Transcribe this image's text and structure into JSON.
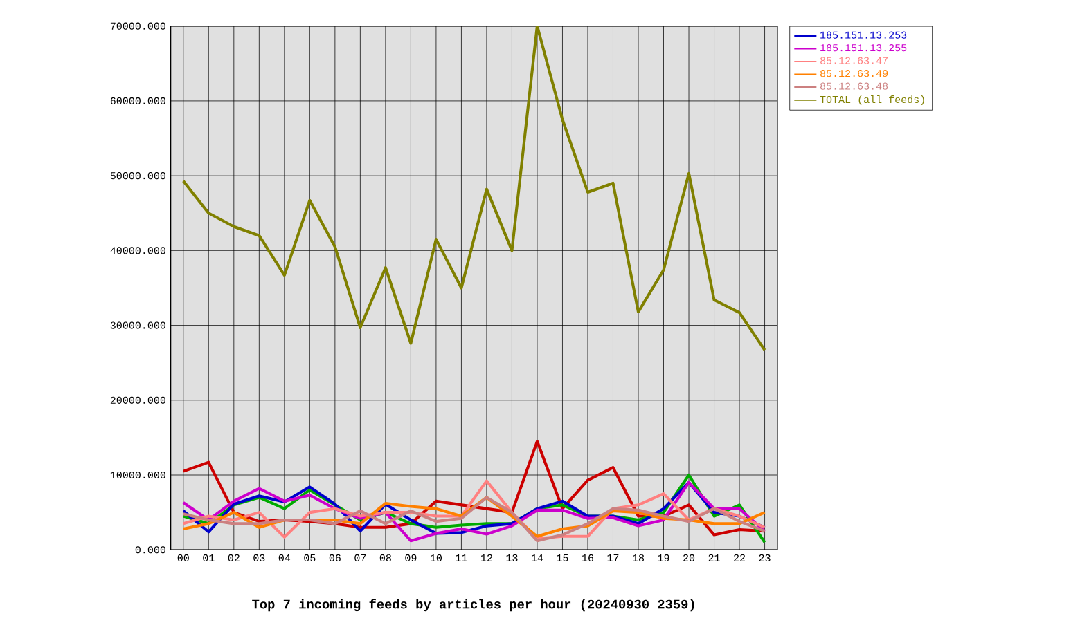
{
  "chart_data": {
    "type": "line",
    "title": "Top 7 incoming feeds by articles per hour (20240930 2359)",
    "categories": [
      "00",
      "01",
      "02",
      "03",
      "04",
      "05",
      "06",
      "07",
      "08",
      "09",
      "10",
      "11",
      "12",
      "13",
      "14",
      "15",
      "16",
      "17",
      "18",
      "19",
      "20",
      "21",
      "22",
      "23"
    ],
    "series": [
      {
        "color": "#cc0000",
        "values": [
          10500,
          11700,
          5000,
          3800,
          4000,
          3800,
          3500,
          3000,
          3000,
          3500,
          6500,
          6000,
          5500,
          5000,
          14500,
          5500,
          9300,
          11000,
          4500,
          4500,
          6000,
          2000,
          2700,
          2500
        ]
      },
      {
        "color": "#00aa00",
        "values": [
          4500,
          3500,
          6000,
          7000,
          5500,
          8000,
          6000,
          4000,
          5000,
          3500,
          3000,
          3300,
          3500,
          3500,
          5500,
          6000,
          4500,
          4500,
          4000,
          5000,
          10000,
          4500,
          6000,
          1000
        ]
      },
      {
        "name": "185.151.13.253",
        "color": "#0000cc",
        "values": [
          5200,
          2400,
          6100,
          7200,
          6400,
          8400,
          6100,
          2500,
          6100,
          4000,
          2200,
          2300,
          3200,
          3500,
          5500,
          6500,
          4500,
          4500,
          3500,
          5500,
          9000,
          5000,
          4500,
          3000
        ]
      },
      {
        "name": "185.151.13.255",
        "color": "#cc00cc",
        "values": [
          6300,
          4000,
          6500,
          8200,
          6500,
          7300,
          5500,
          4200,
          5000,
          1200,
          2200,
          2800,
          2100,
          3200,
          5300,
          5300,
          4200,
          4300,
          3200,
          4000,
          9000,
          5500,
          5500,
          2500
        ]
      },
      {
        "name": "85.12.63.47",
        "color": "#ff8080",
        "values": [
          3500,
          4500,
          4000,
          5000,
          1700,
          5000,
          5500,
          4500,
          5000,
          5000,
          4500,
          4500,
          9200,
          5000,
          1500,
          1800,
          1800,
          5500,
          6000,
          7500,
          4000,
          5500,
          4500,
          3000
        ]
      },
      {
        "name": "85.12.63.49",
        "color": "#ff8000",
        "values": [
          2800,
          3500,
          5000,
          3000,
          4000,
          4000,
          4000,
          3500,
          6200,
          5800,
          5500,
          4500,
          7000,
          4500,
          1800,
          2800,
          3200,
          5200,
          5000,
          4200,
          4000,
          3500,
          3500,
          5000
        ]
      },
      {
        "name": "85.12.63.48",
        "color": "#cc8080",
        "values": [
          4800,
          4000,
          3500,
          3500,
          4000,
          4000,
          3500,
          5200,
          3500,
          5200,
          3800,
          4200,
          7000,
          5000,
          1200,
          2000,
          3500,
          5500,
          5300,
          4500,
          3800,
          5500,
          3800,
          2500
        ]
      },
      {
        "name": "TOTAL (all feeds)",
        "color": "#808000",
        "values": [
          49300,
          45000,
          43200,
          42000,
          36700,
          46700,
          40500,
          29700,
          37700,
          27600,
          41500,
          35000,
          48200,
          40000,
          70000,
          57500,
          47800,
          49000,
          31800,
          37400,
          50300,
          33400,
          31700,
          26700
        ]
      }
    ],
    "ylim": [
      0,
      70000
    ],
    "yticks": [
      {
        "value": 0,
        "label": "0.000"
      },
      {
        "value": 10000,
        "label": "10000.000"
      },
      {
        "value": 20000,
        "label": "20000.000"
      },
      {
        "value": 30000,
        "label": "30000.000"
      },
      {
        "value": 40000,
        "label": "40000.000"
      },
      {
        "value": 50000,
        "label": "50000.000"
      },
      {
        "value": 60000,
        "label": "60000.000"
      },
      {
        "value": 70000,
        "label": "70000.000"
      }
    ],
    "grid": true,
    "legend": "right",
    "line_style": "solid"
  }
}
